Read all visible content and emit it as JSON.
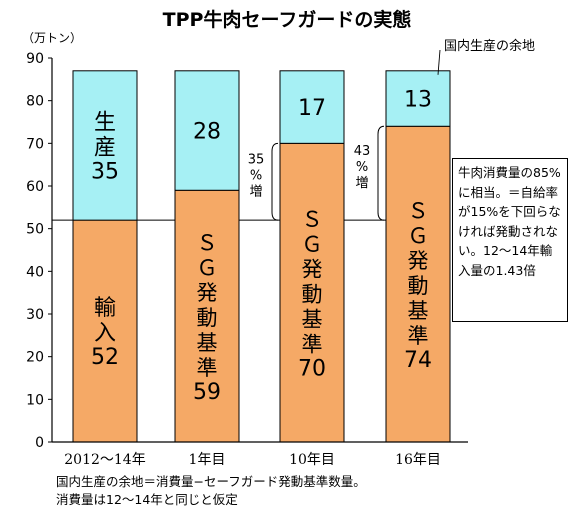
{
  "chart_data": {
    "type": "bar",
    "stacked": true,
    "title": "TPP牛肉セーフガードの実態",
    "unit_label": "（万トン）",
    "categories": [
      "2012〜14年",
      "1年目",
      "10年目",
      "16年目"
    ],
    "yticks": [
      0,
      10,
      20,
      30,
      40,
      50,
      60,
      70,
      80,
      90
    ],
    "ylim": [
      0,
      90
    ],
    "reference_line": 52,
    "series": [
      {
        "name": "lower",
        "color": "#F5A966",
        "values": [
          52,
          59,
          70,
          74
        ],
        "labels": [
          "輸入\n52",
          "ＳＧ発動基準\n59",
          "ＳＧ発動基準\n70",
          "ＳＧ発動基準\n74"
        ]
      },
      {
        "name": "upper",
        "color": "#A6F0F4",
        "values": [
          35,
          28,
          17,
          13
        ],
        "labels": [
          "生産\n35",
          "28",
          "17",
          "13"
        ]
      }
    ],
    "increase_annotations": [
      {
        "bar": 2,
        "text": "35%増"
      },
      {
        "bar": 3,
        "text": "43%増"
      }
    ],
    "callout": "国内生産の余地",
    "note": "牛肉消費量の85%に相当。＝自給率が15%を下回らなければ発動されない。12〜14年輸入量の1.43倍",
    "footnotes": [
      "国内生産の余地＝消費量−セーフガード発動基準数量。",
      "消費量は12〜14年と同じと仮定"
    ]
  }
}
